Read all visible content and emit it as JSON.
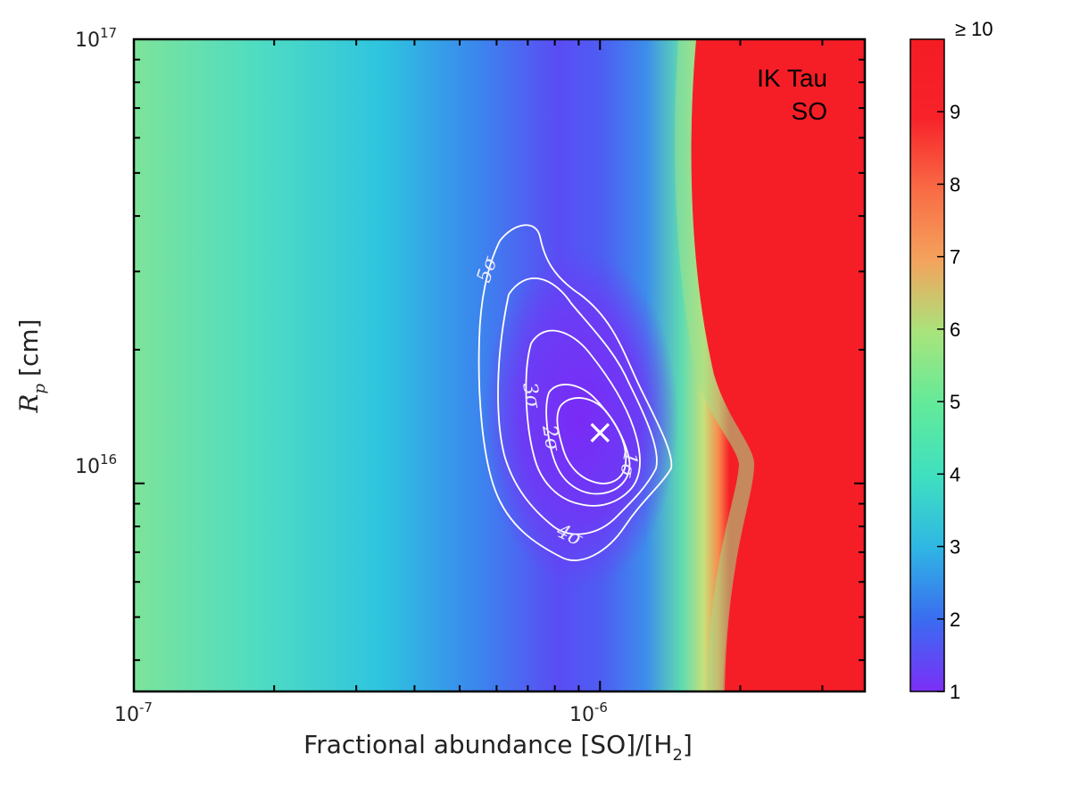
{
  "chart_data": {
    "type": "heatmap",
    "title": "",
    "annotation_lines": [
      "IK Tau",
      "SO"
    ],
    "xlabel_main": "Fractional abundance [SO]/[H",
    "xlabel_sub": "2",
    "xlabel_end": "]",
    "ylabel_var": "R",
    "ylabel_sub": "p",
    "ylabel_unit": "[cm]",
    "x_scale": "log",
    "y_scale": "log",
    "xlim": [
      1e-07,
      3.7e-06
    ],
    "ylim": [
      3400000000000000.0,
      1e+17
    ],
    "x_decade_ticks": [
      {
        "value": 1e-07,
        "base": "10",
        "exp": "-7"
      },
      {
        "value": 1e-06,
        "base": "10",
        "exp": "-6"
      }
    ],
    "y_decade_ticks": [
      {
        "value": 1e+16,
        "base": "10",
        "exp": "16"
      },
      {
        "value": 1e+17,
        "base": "10",
        "exp": "17"
      }
    ],
    "best_fit": {
      "x": 1e-06,
      "y": 1.3e+16,
      "marker": "×"
    },
    "colorbar": {
      "min": 1,
      "max": 10,
      "ticks": [
        "1",
        "2",
        "3",
        "4",
        "5",
        "6",
        "7",
        "8",
        "9"
      ],
      "top_label": "≥ 10",
      "colormap": "rainbow",
      "colors": [
        "#7b2ff7",
        "#3a6cf0",
        "#2fb6e4",
        "#3fe0c0",
        "#7ae88f",
        "#c6e27a",
        "#f4a35d",
        "#f96b45",
        "#f7222a",
        "#f51c24"
      ]
    },
    "contours": [
      {
        "label": "1σ",
        "level": 1
      },
      {
        "label": "2σ",
        "level": 2
      },
      {
        "label": "3σ",
        "level": 3
      },
      {
        "label": "4σ",
        "level": 4
      },
      {
        "label": "5σ",
        "level": 5
      }
    ]
  }
}
